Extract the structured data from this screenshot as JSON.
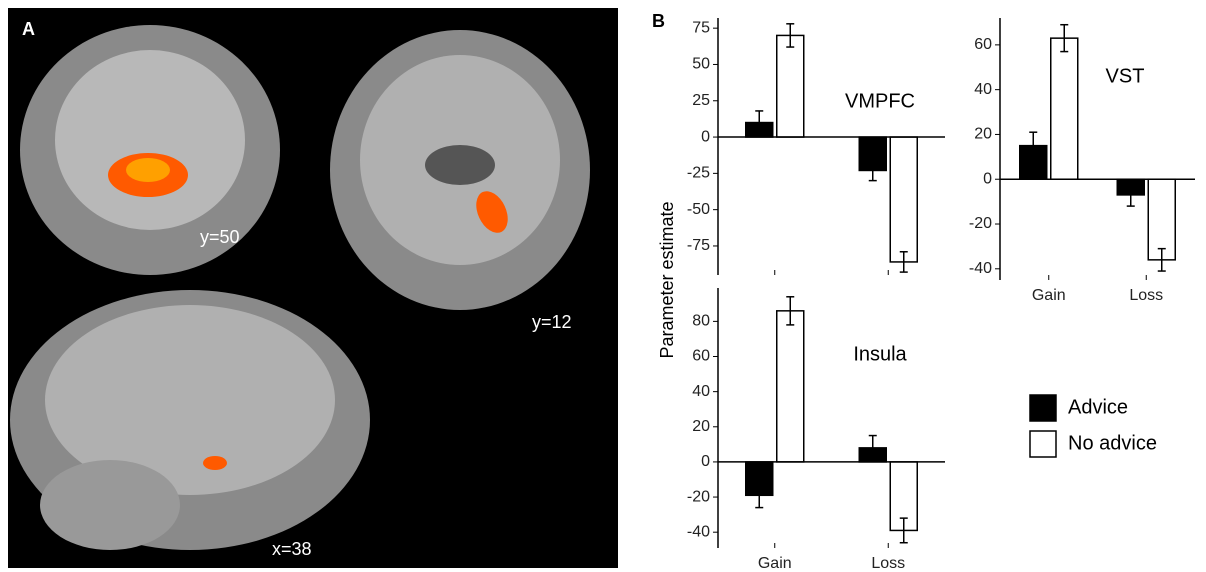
{
  "panel_a": {
    "label": "A",
    "slices": [
      "y=50",
      "y=12",
      "x=38"
    ]
  },
  "panel_b": {
    "label": "B",
    "y_label": "Parameter estimate"
  },
  "chart_data": [
    {
      "type": "bar",
      "title": "VMPFC",
      "categories": [
        null,
        null
      ],
      "series": [
        {
          "color": "#000000",
          "values": [
            10,
            -23
          ],
          "errors": [
            8,
            7
          ]
        },
        {
          "color": "#ffffff",
          "values": [
            70,
            -86
          ],
          "errors": [
            8,
            7
          ]
        }
      ],
      "ylim": [
        -95,
        82
      ],
      "yticks": [
        75,
        50,
        25,
        0,
        -25,
        -50,
        -75
      ]
    },
    {
      "type": "bar",
      "title": "VST",
      "categories": [
        "Gain",
        "Loss"
      ],
      "series": [
        {
          "color": "#000000",
          "values": [
            15,
            -7
          ],
          "errors": [
            6,
            5
          ]
        },
        {
          "color": "#ffffff",
          "values": [
            63,
            -36
          ],
          "errors": [
            6,
            5
          ]
        }
      ],
      "ylim": [
        -45,
        72
      ],
      "yticks": [
        60,
        40,
        20,
        0,
        -20,
        -40
      ]
    },
    {
      "type": "bar",
      "title": "Insula",
      "categories": [
        "Gain",
        "Loss"
      ],
      "series": [
        {
          "name": "Advice",
          "color": "#000000",
          "values": [
            -19,
            8
          ],
          "errors": [
            7,
            7
          ]
        },
        {
          "name": "No advice",
          "color": "#ffffff",
          "values": [
            86,
            -39
          ],
          "errors": [
            8,
            7
          ]
        }
      ],
      "ylim": [
        -49,
        99
      ],
      "yticks": [
        80,
        60,
        40,
        20,
        0,
        -20,
        -40
      ]
    }
  ]
}
